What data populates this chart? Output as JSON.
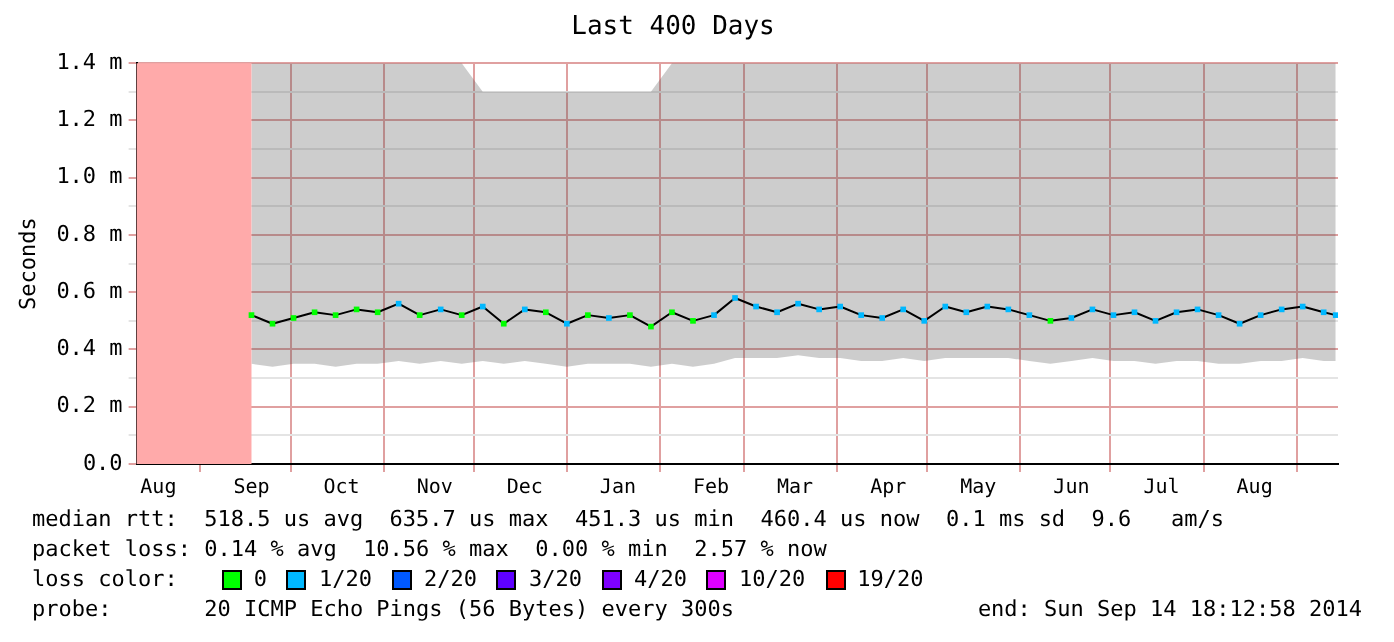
{
  "chart_data": {
    "type": "line",
    "title": "Last 400 Days",
    "ylabel": "Seconds",
    "xlim": [
      "2013-08-10T18:12",
      "2014-09-14T18:12"
    ],
    "xticks": [
      {
        "value": "2013-08-18",
        "label": "Aug"
      },
      {
        "value": "2013-09-01",
        "label": null
      },
      {
        "value": "2013-09-18",
        "label": "Sep"
      },
      {
        "value": "2013-10-01",
        "label": null
      },
      {
        "value": "2013-10-18",
        "label": "Oct"
      },
      {
        "value": "2013-11-01",
        "label": null
      },
      {
        "value": "2013-11-18",
        "label": "Nov"
      },
      {
        "value": "2013-12-01",
        "label": null
      },
      {
        "value": "2013-12-18",
        "label": "Dec"
      },
      {
        "value": "2014-01-01",
        "label": null
      },
      {
        "value": "2014-01-18",
        "label": "Jan"
      },
      {
        "value": "2014-02-01",
        "label": null
      },
      {
        "value": "2014-02-18",
        "label": "Feb"
      },
      {
        "value": "2014-03-01",
        "label": null
      },
      {
        "value": "2014-03-18",
        "label": "Mar"
      },
      {
        "value": "2014-04-01",
        "label": null
      },
      {
        "value": "2014-04-18",
        "label": "Apr"
      },
      {
        "value": "2014-05-01",
        "label": null
      },
      {
        "value": "2014-05-18",
        "label": "May"
      },
      {
        "value": "2014-06-01",
        "label": null
      },
      {
        "value": "2014-06-18",
        "label": "Jun"
      },
      {
        "value": "2014-07-01",
        "label": null
      },
      {
        "value": "2014-07-18",
        "label": "Jul"
      },
      {
        "value": "2014-08-01",
        "label": null
      },
      {
        "value": "2014-08-18",
        "label": "Aug"
      },
      {
        "value": "2014-09-01",
        "label": null
      }
    ],
    "ylim": [
      0,
      1.4
    ],
    "yticks": [
      {
        "value": 0,
        "label": "0.0"
      },
      {
        "value": 0.1,
        "label": null
      },
      {
        "value": 0.2,
        "label": "0.2 m"
      },
      {
        "value": 0.3,
        "label": null
      },
      {
        "value": 0.4,
        "label": "0.4 m"
      },
      {
        "value": 0.5,
        "label": null
      },
      {
        "value": 0.6,
        "label": "0.6 m"
      },
      {
        "value": 0.7,
        "label": null
      },
      {
        "value": 0.8,
        "label": "0.8 m"
      },
      {
        "value": 0.9,
        "label": null
      },
      {
        "value": 1.0,
        "label": "1.0 m"
      },
      {
        "value": 1.1,
        "label": null
      },
      {
        "value": 1.2,
        "label": "1.2 m"
      },
      {
        "value": 1.3,
        "label": null
      },
      {
        "value": 1.4,
        "label": "1.4 m"
      }
    ],
    "grid": true,
    "legend": "bottom",
    "legend_title": "loss color:",
    "marker": "square",
    "bands": [
      {
        "axis": "x",
        "from": "2013-08-10T18:12",
        "to": "2013-09-18",
        "color": "#ffaaaa"
      }
    ],
    "x": [
      "2013-09-18",
      "2013-09-25",
      "2013-10-02",
      "2013-10-09",
      "2013-10-16",
      "2013-10-23",
      "2013-10-30",
      "2013-11-06",
      "2013-11-13",
      "2013-11-20",
      "2013-11-27",
      "2013-12-04",
      "2013-12-11",
      "2013-12-18",
      "2013-12-25",
      "2014-01-01",
      "2014-01-08",
      "2014-01-15",
      "2014-01-22",
      "2014-01-29",
      "2014-02-05",
      "2014-02-12",
      "2014-02-19",
      "2014-02-26",
      "2014-03-05",
      "2014-03-12",
      "2014-03-19",
      "2014-03-26",
      "2014-04-02",
      "2014-04-09",
      "2014-04-16",
      "2014-04-23",
      "2014-04-30",
      "2014-05-07",
      "2014-05-14",
      "2014-05-21",
      "2014-05-28",
      "2014-06-04",
      "2014-06-11",
      "2014-06-18",
      "2014-06-25",
      "2014-07-02",
      "2014-07-09",
      "2014-07-16",
      "2014-07-23",
      "2014-07-30",
      "2014-08-06",
      "2014-08-13",
      "2014-08-20",
      "2014-08-27",
      "2014-09-03",
      "2014-09-10",
      "2014-09-14"
    ],
    "series": [
      {
        "type": "line",
        "color": "#000000",
        "marker": "none",
        "values": [
          0.52,
          0.49,
          0.51,
          0.53,
          0.52,
          0.54,
          0.53,
          0.56,
          0.52,
          0.54,
          0.52,
          0.55,
          0.49,
          0.54,
          0.53,
          0.49,
          0.52,
          0.51,
          0.52,
          0.48,
          0.53,
          0.5,
          0.52,
          0.58,
          0.55,
          0.53,
          0.56,
          0.54,
          0.55,
          0.52,
          0.51,
          0.54,
          0.5,
          0.55,
          0.53,
          0.55,
          0.54,
          0.52,
          0.5,
          0.51,
          0.54,
          0.52,
          0.53,
          0.5,
          0.53,
          0.54,
          0.52,
          0.49,
          0.52,
          0.54,
          0.55,
          0.53,
          0.52
        ],
        "lower": [
          0.35,
          0.34,
          0.35,
          0.35,
          0.34,
          0.35,
          0.35,
          0.36,
          0.35,
          0.36,
          0.35,
          0.36,
          0.35,
          0.36,
          0.35,
          0.34,
          0.35,
          0.35,
          0.35,
          0.34,
          0.35,
          0.34,
          0.35,
          0.37,
          0.37,
          0.37,
          0.38,
          0.37,
          0.37,
          0.36,
          0.36,
          0.37,
          0.36,
          0.37,
          0.37,
          0.37,
          0.37,
          0.36,
          0.35,
          0.36,
          0.37,
          0.36,
          0.36,
          0.35,
          0.36,
          0.36,
          0.35,
          0.35,
          0.36,
          0.36,
          0.37,
          0.36,
          0.36
        ],
        "upper": [
          1.4,
          1.4,
          1.4,
          1.4,
          1.4,
          1.4,
          1.4,
          1.4,
          1.4,
          1.4,
          1.4,
          1.3,
          1.3,
          1.3,
          1.3,
          1.3,
          1.3,
          1.3,
          1.3,
          1.3,
          1.4,
          1.4,
          1.4,
          1.4,
          1.4,
          1.4,
          1.4,
          1.4,
          1.4,
          1.4,
          1.4,
          1.4,
          1.4,
          1.4,
          1.4,
          1.4,
          1.4,
          1.4,
          1.4,
          1.4,
          1.4,
          1.4,
          1.4,
          1.4,
          1.4,
          1.4,
          1.4,
          1.4,
          1.4,
          1.4,
          1.4,
          1.4,
          1.4
        ]
      },
      {
        "type": "scatter",
        "name": "0",
        "color": "#00ff00",
        "values": [
          0.52,
          0.49,
          0.51,
          0.53,
          0.52,
          0.54,
          0.53,
          null,
          0.52,
          null,
          0.52,
          null,
          0.49,
          null,
          0.53,
          null,
          0.52,
          null,
          0.52,
          0.48,
          0.53,
          0.5,
          null,
          null,
          null,
          null,
          null,
          null,
          null,
          null,
          null,
          null,
          null,
          null,
          null,
          null,
          null,
          null,
          0.5,
          null,
          null,
          null,
          null,
          null,
          null,
          null,
          null,
          null,
          null,
          null,
          null,
          null,
          null
        ]
      },
      {
        "type": "scatter",
        "name": "1/20",
        "color": "#00b8ff",
        "values": [
          null,
          null,
          null,
          null,
          null,
          null,
          null,
          0.56,
          null,
          0.54,
          null,
          0.55,
          null,
          0.54,
          null,
          0.49,
          null,
          0.51,
          null,
          null,
          null,
          null,
          0.52,
          0.58,
          0.55,
          0.53,
          0.56,
          0.54,
          0.55,
          0.52,
          0.51,
          0.54,
          0.5,
          0.55,
          0.53,
          0.55,
          0.54,
          0.52,
          null,
          0.51,
          0.54,
          0.52,
          0.53,
          0.5,
          0.53,
          0.54,
          0.52,
          0.49,
          0.52,
          0.54,
          0.55,
          0.53,
          0.52
        ]
      },
      {
        "type": "scatter",
        "name": "2/20",
        "color": "#0059ff",
        "values": [
          null,
          null,
          null,
          null,
          null,
          null,
          null,
          null,
          null,
          null,
          null,
          null,
          null,
          null,
          null,
          null,
          null,
          null,
          null,
          null,
          null,
          null,
          null,
          null,
          null,
          null,
          null,
          null,
          null,
          null,
          null,
          null,
          null,
          null,
          null,
          null,
          null,
          null,
          null,
          null,
          null,
          null,
          null,
          null,
          null,
          null,
          null,
          null,
          null,
          null,
          null,
          null,
          null
        ]
      },
      {
        "type": "scatter",
        "name": "3/20",
        "color": "#5e00ff",
        "values": [
          null,
          null,
          null,
          null,
          null,
          null,
          null,
          null,
          null,
          null,
          null,
          null,
          null,
          null,
          null,
          null,
          null,
          null,
          null,
          null,
          null,
          null,
          null,
          null,
          null,
          null,
          null,
          null,
          null,
          null,
          null,
          null,
          null,
          null,
          null,
          null,
          null,
          null,
          null,
          null,
          null,
          null,
          null,
          null,
          null,
          null,
          null,
          null,
          null,
          null,
          null,
          null,
          null
        ]
      },
      {
        "type": "scatter",
        "name": "4/20",
        "color": "#7e00ff",
        "values": [
          null,
          null,
          null,
          null,
          null,
          null,
          null,
          null,
          null,
          null,
          null,
          null,
          null,
          null,
          null,
          null,
          null,
          null,
          null,
          null,
          null,
          null,
          null,
          null,
          null,
          null,
          null,
          null,
          null,
          null,
          null,
          null,
          null,
          null,
          null,
          null,
          null,
          null,
          null,
          null,
          null,
          null,
          null,
          null,
          null,
          null,
          null,
          null,
          null,
          null,
          null,
          null,
          null
        ]
      },
      {
        "type": "scatter",
        "name": "10/20",
        "color": "#dd00ff",
        "values": [
          null,
          null,
          null,
          null,
          null,
          null,
          null,
          null,
          null,
          null,
          null,
          null,
          null,
          null,
          null,
          null,
          null,
          null,
          null,
          null,
          null,
          null,
          null,
          null,
          null,
          null,
          null,
          null,
          null,
          null,
          null,
          null,
          null,
          null,
          null,
          null,
          null,
          null,
          null,
          null,
          null,
          null,
          null,
          null,
          null,
          null,
          null,
          null,
          null,
          null,
          null,
          null,
          null
        ]
      },
      {
        "type": "scatter",
        "name": "19/20",
        "color": "#ff0000",
        "values": [
          null,
          null,
          null,
          null,
          null,
          null,
          null,
          null,
          null,
          null,
          null,
          null,
          null,
          null,
          null,
          null,
          null,
          null,
          null,
          null,
          null,
          null,
          null,
          null,
          null,
          null,
          null,
          null,
          null,
          null,
          null,
          null,
          null,
          null,
          null,
          null,
          null,
          null,
          null,
          null,
          null,
          null,
          null,
          null,
          null,
          null,
          null,
          null,
          null,
          null,
          null,
          null,
          null
        ]
      }
    ],
    "annotations": [
      "median rtt:  518.5 us avg  635.7 us max  451.3 us min  460.4 us now  0.1 ms sd  9.6   am/s",
      "packet loss: 0.14 % avg  10.56 % max  0.00 % min  2.57 % now",
      "probe:       20 ICMP Echo Pings (56 Bytes) every 300s",
      "end: Sun Sep 14 18:12:58 2014"
    ]
  }
}
